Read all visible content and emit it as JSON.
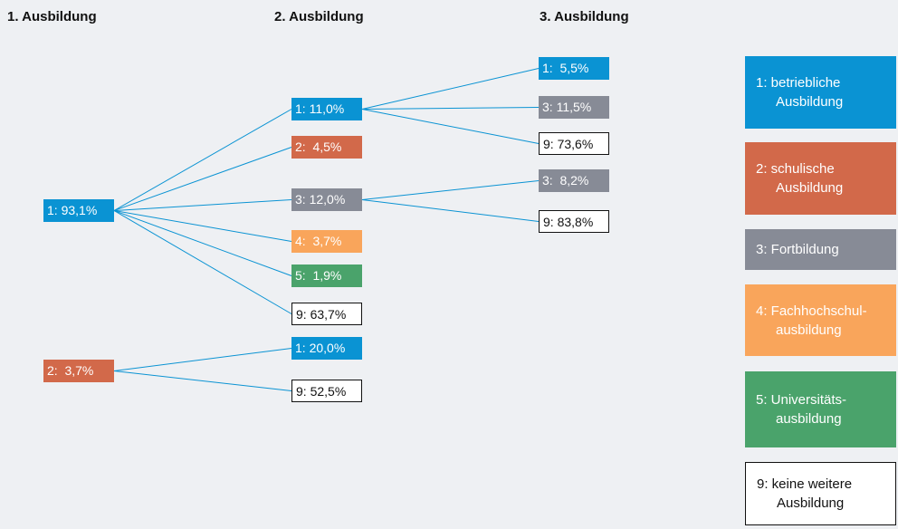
{
  "headers": [
    "1. Ausbildung",
    "2. Ausbildung",
    "3. Ausbildung"
  ],
  "nodes": [
    {
      "label": "1: 93,1%"
    },
    {
      "label": "2:  3,7%"
    },
    {
      "label": "1: 11,0%"
    },
    {
      "label": "2:  4,5%"
    },
    {
      "label": "3: 12,0%"
    },
    {
      "label": "4:  3,7%"
    },
    {
      "label": "5:  1,9%"
    },
    {
      "label": "9: 63,7%"
    },
    {
      "label": "1: 20,0%"
    },
    {
      "label": "9: 52,5%"
    },
    {
      "label": "1:  5,5%"
    },
    {
      "label": "3: 11,5%"
    },
    {
      "label": "9: 73,6%"
    },
    {
      "label": "3:  8,2%"
    },
    {
      "label": "9: 83,8%"
    }
  ],
  "legend": [
    "1: betriebliche Ausbildung",
    "2: schulische Ausbildung",
    "3: Fortbildung",
    "4: Fachhochschul-ausbildung",
    "5: Universitäts-ausbildung",
    "9: keine weitere Ausbildung"
  ]
}
